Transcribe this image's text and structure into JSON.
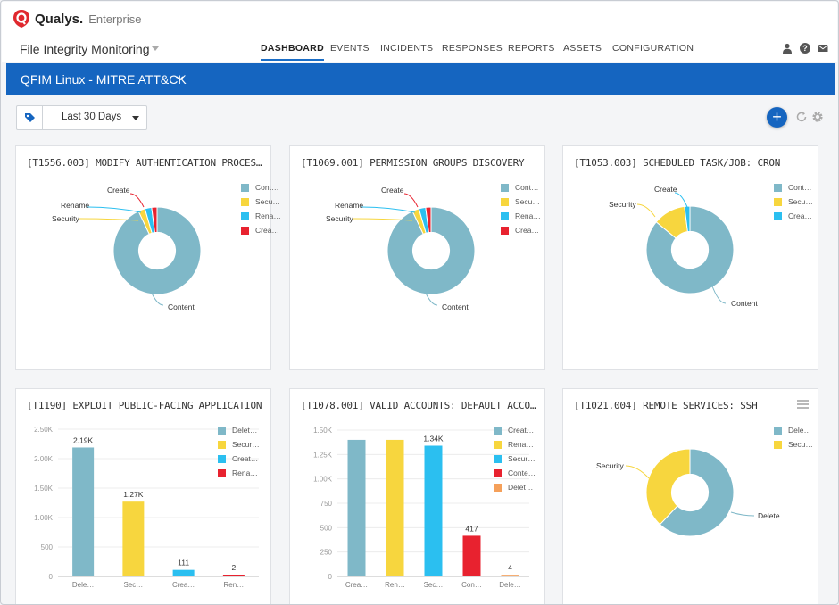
{
  "brand": {
    "name": "Qualys.",
    "edition": "Enterprise"
  },
  "app": {
    "title": "File Integrity Monitoring"
  },
  "nav": [
    {
      "label": "DASHBOARD",
      "active": true
    },
    {
      "label": "EVENTS",
      "active": false
    },
    {
      "label": "INCIDENTS",
      "active": false
    },
    {
      "label": "RESPONSES",
      "active": false
    },
    {
      "label": "REPORTS",
      "active": false
    },
    {
      "label": "ASSETS",
      "active": false
    },
    {
      "label": "CONFIGURATION",
      "active": false
    }
  ],
  "top_icons": [
    "user-icon",
    "help-icon",
    "mail-icon"
  ],
  "dashboard": {
    "name": "QFIM Linux - MITRE ATT&CK"
  },
  "filter": {
    "range": "Last 30 Days"
  },
  "colors": {
    "brand_red": "#e0282e",
    "accent_blue": "#1565c0",
    "teal": "#7fb8c8",
    "yellow": "#f7d63e",
    "cyan": "#2bbff0",
    "red": "#e8222f",
    "orange": "#f5a05a"
  },
  "widgets": [
    {
      "title": "[T1556.003] MODIFY AUTHENTICATION PROCES…",
      "legend": [
        {
          "label": "Cont…",
          "color": "#7fb8c8"
        },
        {
          "label": "Secu…",
          "color": "#f7d63e"
        },
        {
          "label": "Rena…",
          "color": "#2bbff0"
        },
        {
          "label": "Crea…",
          "color": "#e8222f"
        }
      ],
      "chart_data": {
        "type": "pie",
        "style": "donut",
        "labels": [
          "Content",
          "Security",
          "Rename",
          "Create"
        ],
        "values": [
          93,
          2.5,
          2.5,
          2
        ],
        "colors": [
          "#7fb8c8",
          "#f7d63e",
          "#2bbff0",
          "#e8222f"
        ]
      }
    },
    {
      "title": "[T1069.001] PERMISSION GROUPS DISCOVERY",
      "legend": [
        {
          "label": "Cont…",
          "color": "#7fb8c8"
        },
        {
          "label": "Secu…",
          "color": "#f7d63e"
        },
        {
          "label": "Rena…",
          "color": "#2bbff0"
        },
        {
          "label": "Crea…",
          "color": "#e8222f"
        }
      ],
      "chart_data": {
        "type": "pie",
        "style": "donut",
        "labels": [
          "Content",
          "Security",
          "Rename",
          "Create"
        ],
        "values": [
          93,
          2.5,
          2.5,
          2
        ],
        "colors": [
          "#7fb8c8",
          "#f7d63e",
          "#2bbff0",
          "#e8222f"
        ]
      }
    },
    {
      "title": "[T1053.003] SCHEDULED TASK/JOB: CRON",
      "legend": [
        {
          "label": "Cont…",
          "color": "#7fb8c8"
        },
        {
          "label": "Secu…",
          "color": "#f7d63e"
        },
        {
          "label": "Crea…",
          "color": "#2bbff0"
        }
      ],
      "chart_data": {
        "type": "pie",
        "style": "donut",
        "labels": [
          "Content",
          "Security",
          "Create"
        ],
        "values": [
          86,
          12,
          2
        ],
        "colors": [
          "#7fb8c8",
          "#f7d63e",
          "#2bbff0"
        ]
      }
    },
    {
      "title": "[T1190] EXPLOIT PUBLIC-FACING APPLICATION",
      "legend": [
        {
          "label": "Delet…",
          "color": "#7fb8c8"
        },
        {
          "label": "Secur…",
          "color": "#f7d63e"
        },
        {
          "label": "Creat…",
          "color": "#2bbff0"
        },
        {
          "label": "Rena…",
          "color": "#e8222f"
        }
      ],
      "chart_data": {
        "type": "bar",
        "categories": [
          "Dele…",
          "Sec…",
          "Crea…",
          "Ren…"
        ],
        "values": [
          2190,
          1270,
          111,
          2
        ],
        "data_labels": [
          "2.19K",
          "1.27K",
          "111",
          "2"
        ],
        "colors": [
          "#7fb8c8",
          "#f7d63e",
          "#2bbff0",
          "#e8222f"
        ],
        "yticks": [
          "0",
          "500",
          "1.00K",
          "1.50K",
          "2.00K",
          "2.50K"
        ],
        "ylim": [
          0,
          2500
        ]
      }
    },
    {
      "title": "[T1078.001] VALID ACCOUNTS: DEFAULT ACCO…",
      "legend": [
        {
          "label": "Creat…",
          "color": "#7fb8c8"
        },
        {
          "label": "Rena…",
          "color": "#f7d63e"
        },
        {
          "label": "Secur…",
          "color": "#2bbff0"
        },
        {
          "label": "Conte…",
          "color": "#e8222f"
        },
        {
          "label": "Delet…",
          "color": "#f5a05a"
        }
      ],
      "chart_data": {
        "type": "bar",
        "categories": [
          "Crea…",
          "Ren…",
          "Sec…",
          "Con…",
          "Dele…"
        ],
        "values": [
          1400,
          1400,
          1340,
          417,
          4
        ],
        "data_labels": [
          "",
          "",
          "1.34K",
          "417",
          "4"
        ],
        "colors": [
          "#7fb8c8",
          "#f7d63e",
          "#2bbff0",
          "#e8222f",
          "#f5a05a"
        ],
        "yticks": [
          "0",
          "250",
          "500",
          "750",
          "1.00K",
          "1.25K",
          "1.50K"
        ],
        "ylim": [
          0,
          1500
        ]
      }
    },
    {
      "title": "[T1021.004] REMOTE SERVICES: SSH",
      "legend": [
        {
          "label": "Dele…",
          "color": "#7fb8c8"
        },
        {
          "label": "Secu…",
          "color": "#f7d63e"
        }
      ],
      "chart_data": {
        "type": "pie",
        "style": "donut",
        "labels": [
          "Delete",
          "Security"
        ],
        "values": [
          62,
          38
        ],
        "colors": [
          "#7fb8c8",
          "#f7d63e"
        ]
      }
    }
  ]
}
